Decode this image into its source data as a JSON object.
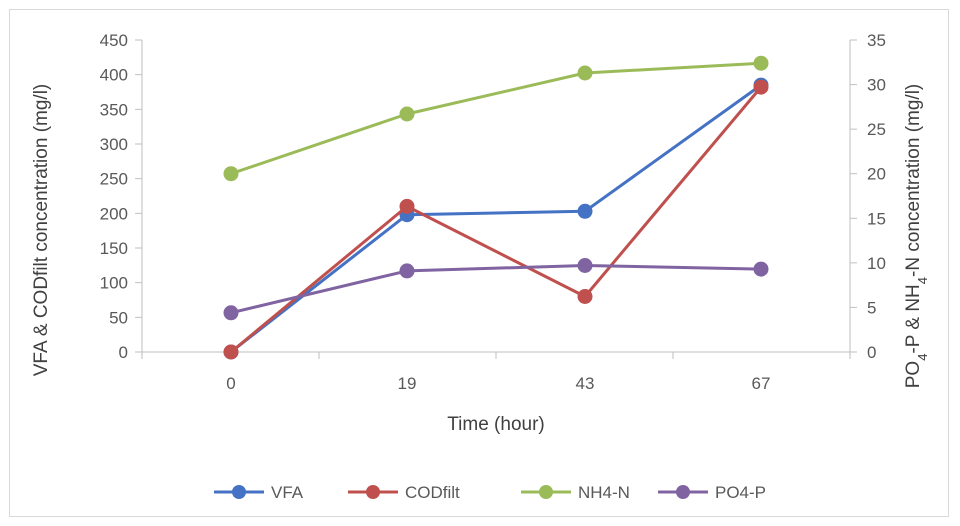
{
  "chart_data": {
    "type": "line",
    "title": "",
    "categories": [
      "0",
      "19",
      "43",
      "67"
    ],
    "xlabel": "Time (hour)",
    "ylabel": "VFA & CODfilt concentration (mg/l)",
    "ylabel_right_parts": [
      {
        "text": "PO",
        "sub": false
      },
      {
        "text": "4",
        "sub": true
      },
      {
        "text": "-P & NH",
        "sub": false
      },
      {
        "text": "4",
        "sub": true
      },
      {
        "text": "-N concentration (mg/l)",
        "sub": false
      }
    ],
    "ylim": [
      0,
      450
    ],
    "yticks": [
      0,
      50,
      100,
      150,
      200,
      250,
      300,
      350,
      400,
      450
    ],
    "y2lim": [
      0,
      35
    ],
    "y2ticks": [
      0,
      5,
      10,
      15,
      20,
      25,
      30,
      35
    ],
    "grid": false,
    "legend_position": "bottom",
    "series": [
      {
        "name": "VFA",
        "axis": "left",
        "color": "#4472c4",
        "values": [
          0,
          198,
          203,
          385
        ]
      },
      {
        "name": "CODfilt",
        "axis": "left",
        "color": "#c0504d",
        "values": [
          0,
          210,
          80,
          382
        ]
      },
      {
        "name": "NH4-N",
        "axis": "right",
        "color": "#9bbb59",
        "values": [
          20,
          26.7,
          31.3,
          32.4
        ]
      },
      {
        "name": "PO4-P",
        "axis": "right",
        "color": "#8064a2",
        "values": [
          4.4,
          9.1,
          9.7,
          9.3
        ]
      }
    ]
  }
}
